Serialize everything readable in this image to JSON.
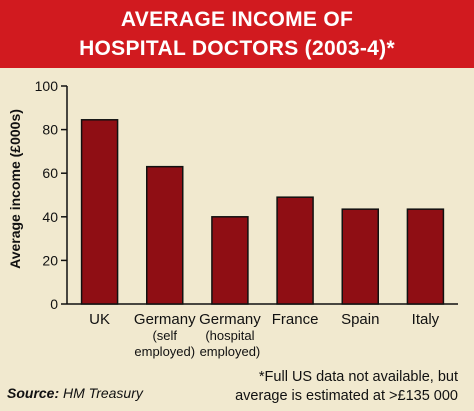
{
  "title_lines": [
    "AVERAGE INCOME OF",
    "HOSPITAL DOCTORS (2003-4)*"
  ],
  "colors": {
    "header_bg": "#d11a1f",
    "background": "#f1e9cf",
    "bar_fill": "#8f0e14",
    "bar_stroke": "#111111"
  },
  "chart_data": {
    "type": "bar",
    "title": "AVERAGE INCOME OF HOSPITAL DOCTORS (2003-4)*",
    "ylabel": "Average income (£000s)",
    "xlabel": "",
    "ylim": [
      0,
      100
    ],
    "yticks": [
      "0",
      "20",
      "40",
      "60",
      "80",
      "100"
    ],
    "categories": [
      [
        "UK"
      ],
      [
        "Germany",
        "(self",
        "employed)"
      ],
      [
        "Germany",
        "(hospital",
        "employed)"
      ],
      [
        "France"
      ],
      [
        "Spain"
      ],
      [
        "Italy"
      ]
    ],
    "values": [
      84.5,
      63,
      40,
      49,
      43.5,
      43.5
    ],
    "grid": false,
    "legend": "none"
  },
  "footer": {
    "source_key": "Source:",
    "source_value": "HM Treasury",
    "footnote_lines": [
      "*Full US data not available, but",
      "average is estimated at >£135 000"
    ]
  }
}
